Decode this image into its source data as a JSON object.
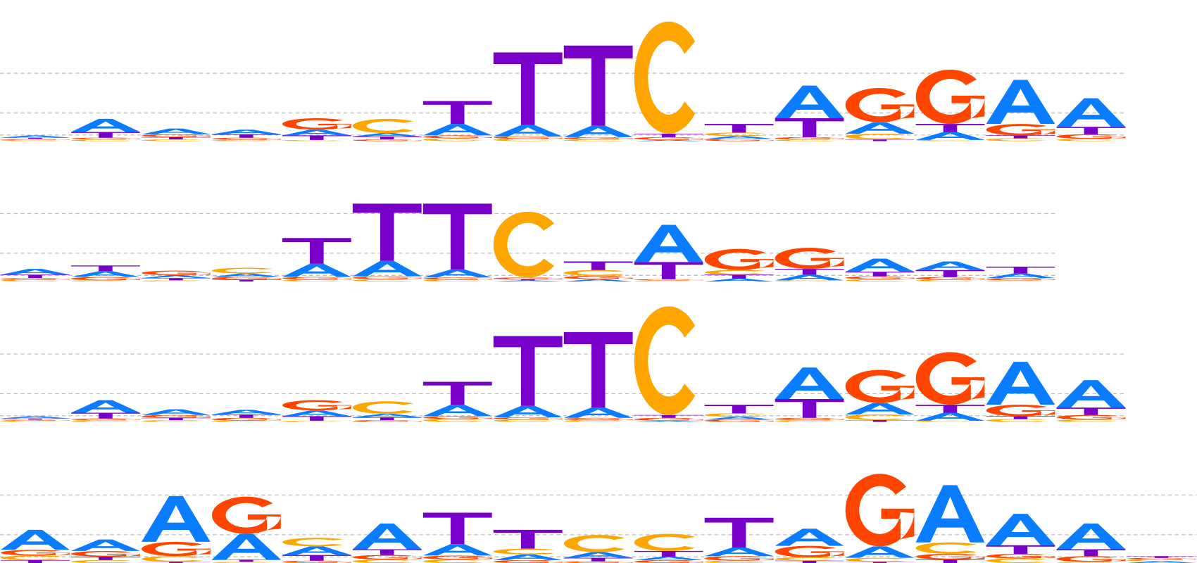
{
  "chart_data": [
    {
      "type": "sequence-logo",
      "unit": "bits",
      "colors": {
        "A": "#0a7cff",
        "C": "#ffa500",
        "G": "#ff4500",
        "T": "#7800c8"
      },
      "positions": [
        {
          "A": 0.04,
          "C": 0.02,
          "G": 0.02,
          "T": 0.02
        },
        {
          "A": 0.23,
          "C": 0.03,
          "G": 0.03,
          "T": 0.1
        },
        {
          "A": 0.1,
          "C": 0.03,
          "G": 0.05,
          "T": 0.04
        },
        {
          "A": 0.08,
          "C": 0.02,
          "G": 0.04,
          "T": 0.06
        },
        {
          "A": 0.1,
          "C": 0.02,
          "G": 0.2,
          "T": 0.08
        },
        {
          "A": 0.06,
          "C": 0.25,
          "G": 0.03,
          "T": 0.05
        },
        {
          "A": 0.2,
          "C": 0.05,
          "G": 0.05,
          "T": 0.4
        },
        {
          "A": 0.2,
          "C": 0.04,
          "G": 0.04,
          "T": 1.27
        },
        {
          "A": 0.2,
          "C": 0.03,
          "G": 0.04,
          "T": 1.4
        },
        {
          "A": 0.02,
          "C": 1.96,
          "G": 0.05,
          "T": 0.06
        },
        {
          "A": 0.05,
          "C": 0.06,
          "G": 0.04,
          "T": 0.15
        },
        {
          "A": 0.57,
          "C": 0.03,
          "G": 0.04,
          "T": 0.33
        },
        {
          "A": 0.2,
          "C": 0.1,
          "G": 0.6,
          "T": 0.03
        },
        {
          "A": 0.14,
          "C": 0.02,
          "G": 0.95,
          "T": 0.14
        },
        {
          "A": 0.77,
          "C": 0.05,
          "G": 0.2,
          "T": 0.05
        },
        {
          "A": 0.5,
          "C": 0.04,
          "G": 0.08,
          "T": 0.13
        }
      ]
    },
    {
      "type": "sequence-logo",
      "unit": "bits",
      "colors": {
        "A": "#0a7cff",
        "C": "#ffa500",
        "G": "#ff4500",
        "T": "#7800c8"
      },
      "positions": [
        {
          "A": 0.1,
          "C": 0.03,
          "G": 0.03,
          "T": 0.06
        },
        {
          "A": 0.1,
          "C": 0.02,
          "G": 0.06,
          "T": 0.1
        },
        {
          "A": 0.05,
          "C": 0.02,
          "G": 0.08,
          "T": 0.04
        },
        {
          "A": 0.06,
          "C": 0.1,
          "G": 0.05,
          "T": 0.03
        },
        {
          "A": 0.23,
          "C": 0.03,
          "G": 0.05,
          "T": 0.45
        },
        {
          "A": 0.27,
          "C": 0.04,
          "G": 0.05,
          "T": 1.0
        },
        {
          "A": 0.14,
          "C": 0.03,
          "G": 0.04,
          "T": 1.15
        },
        {
          "A": 0.02,
          "C": 1.15,
          "G": 0.03,
          "T": 0.02
        },
        {
          "A": 0.04,
          "C": 0.1,
          "G": 0.06,
          "T": 0.15
        },
        {
          "A": 0.65,
          "C": 0.02,
          "G": 0.02,
          "T": 0.3
        },
        {
          "A": 0.05,
          "C": 0.08,
          "G": 0.37,
          "T": 0.07
        },
        {
          "A": 0.1,
          "C": 0.02,
          "G": 0.37,
          "T": 0.1
        },
        {
          "A": 0.23,
          "C": 0.04,
          "G": 0.05,
          "T": 0.08
        },
        {
          "A": 0.15,
          "C": 0.03,
          "G": 0.05,
          "T": 0.12
        },
        {
          "A": 0.08,
          "C": 0.02,
          "G": 0.04,
          "T": 0.12
        }
      ]
    },
    {
      "type": "sequence-logo",
      "unit": "bits",
      "colors": {
        "A": "#0a7cff",
        "C": "#ffa500",
        "G": "#ff4500",
        "T": "#7800c8"
      },
      "positions": [
        {
          "A": 0.04,
          "C": 0.02,
          "G": 0.02,
          "T": 0.02
        },
        {
          "A": 0.22,
          "C": 0.03,
          "G": 0.03,
          "T": 0.1
        },
        {
          "A": 0.1,
          "C": 0.03,
          "G": 0.05,
          "T": 0.04
        },
        {
          "A": 0.08,
          "C": 0.02,
          "G": 0.05,
          "T": 0.06
        },
        {
          "A": 0.1,
          "C": 0.02,
          "G": 0.18,
          "T": 0.08
        },
        {
          "A": 0.06,
          "C": 0.22,
          "G": 0.03,
          "T": 0.05
        },
        {
          "A": 0.2,
          "C": 0.05,
          "G": 0.05,
          "T": 0.4
        },
        {
          "A": 0.2,
          "C": 0.04,
          "G": 0.04,
          "T": 1.22
        },
        {
          "A": 0.18,
          "C": 0.03,
          "G": 0.04,
          "T": 1.32
        },
        {
          "A": 0.02,
          "C": 1.9,
          "G": 0.05,
          "T": 0.05
        },
        {
          "A": 0.05,
          "C": 0.06,
          "G": 0.04,
          "T": 0.15
        },
        {
          "A": 0.55,
          "C": 0.03,
          "G": 0.04,
          "T": 0.33
        },
        {
          "A": 0.2,
          "C": 0.1,
          "G": 0.58,
          "T": 0.03
        },
        {
          "A": 0.14,
          "C": 0.02,
          "G": 0.92,
          "T": 0.14
        },
        {
          "A": 0.75,
          "C": 0.05,
          "G": 0.2,
          "T": 0.05
        },
        {
          "A": 0.48,
          "C": 0.04,
          "G": 0.08,
          "T": 0.13
        }
      ]
    },
    {
      "type": "sequence-logo",
      "unit": "bits",
      "colors": {
        "A": "#0a7cff",
        "C": "#ffa500",
        "G": "#ff4500",
        "T": "#7800c8"
      },
      "positions": [
        {
          "A": 0.35,
          "C": 0.08,
          "G": 0.1,
          "T": 0.05
        },
        {
          "A": 0.2,
          "C": 0.05,
          "G": 0.1,
          "T": 0.06
        },
        {
          "A": 0.8,
          "C": 0.1,
          "G": 0.25,
          "T": 0.02
        },
        {
          "A": 0.45,
          "C": 0.02,
          "G": 0.65,
          "T": 0.04
        },
        {
          "A": 0.15,
          "C": 0.15,
          "G": 0.04,
          "T": 0.1
        },
        {
          "A": 0.45,
          "C": 0.06,
          "G": 0.08,
          "T": 0.1
        },
        {
          "A": 0.2,
          "C": 0.06,
          "G": 0.07,
          "T": 0.55
        },
        {
          "A": 0.1,
          "C": 0.1,
          "G": 0.05,
          "T": 0.33
        },
        {
          "A": 0.1,
          "C": 0.3,
          "G": 0.03,
          "T": 0.06
        },
        {
          "A": 0.06,
          "C": 0.3,
          "G": 0.05,
          "T": 0.1
        },
        {
          "A": 0.15,
          "C": 0.04,
          "G": 0.08,
          "T": 0.52
        },
        {
          "A": 0.3,
          "C": 0.06,
          "G": 0.2,
          "T": 0.04
        },
        {
          "A": 0.2,
          "C": 0.07,
          "G": 1.27,
          "T": 0.02
        },
        {
          "A": 1.0,
          "C": 0.2,
          "G": 0.1,
          "T": 0.06
        },
        {
          "A": 0.55,
          "C": 0.08,
          "G": 0.08,
          "T": 0.15
        },
        {
          "A": 0.45,
          "C": 0.02,
          "G": 0.1,
          "T": 0.12
        },
        {
          "A": 0.03,
          "C": 0.03,
          "G": 0.03,
          "T": 0.03
        }
      ]
    }
  ]
}
